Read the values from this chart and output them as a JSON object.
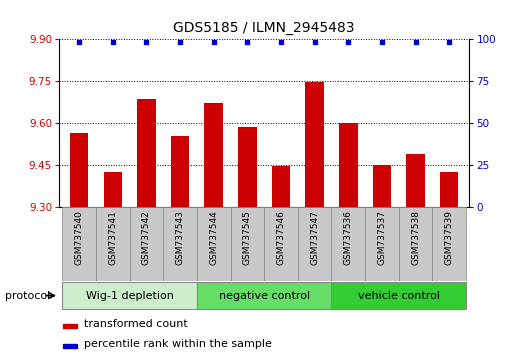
{
  "title": "GDS5185 / ILMN_2945483",
  "samples": [
    "GSM737540",
    "GSM737541",
    "GSM737542",
    "GSM737543",
    "GSM737544",
    "GSM737545",
    "GSM737546",
    "GSM737547",
    "GSM737536",
    "GSM737537",
    "GSM737538",
    "GSM737539"
  ],
  "bar_values": [
    9.565,
    9.425,
    9.685,
    9.555,
    9.67,
    9.585,
    9.445,
    9.745,
    9.6,
    9.45,
    9.49,
    9.425
  ],
  "percentile_values": [
    98,
    98,
    98,
    98,
    98,
    98,
    98,
    98,
    98,
    98,
    98,
    98
  ],
  "ylim_left": [
    9.3,
    9.9
  ],
  "ylim_right": [
    0,
    100
  ],
  "yticks_left": [
    9.3,
    9.45,
    9.6,
    9.75,
    9.9
  ],
  "yticks_right": [
    0,
    25,
    50,
    75,
    100
  ],
  "bar_color": "#cc0000",
  "dot_color": "#0000cc",
  "groups": [
    {
      "label": "Wig-1 depletion",
      "start": 0,
      "end": 4
    },
    {
      "label": "negative control",
      "start": 4,
      "end": 8
    },
    {
      "label": "vehicle control",
      "start": 8,
      "end": 12
    }
  ],
  "group_colors": [
    "#cceecc",
    "#66dd66",
    "#33cc33"
  ],
  "protocol_label": "protocol",
  "legend_items": [
    {
      "color": "#cc0000",
      "label": "transformed count"
    },
    {
      "color": "#0000cc",
      "label": "percentile rank within the sample"
    }
  ],
  "title_fontsize": 10,
  "tick_fontsize": 7.5,
  "group_fontsize": 8,
  "legend_fontsize": 8
}
